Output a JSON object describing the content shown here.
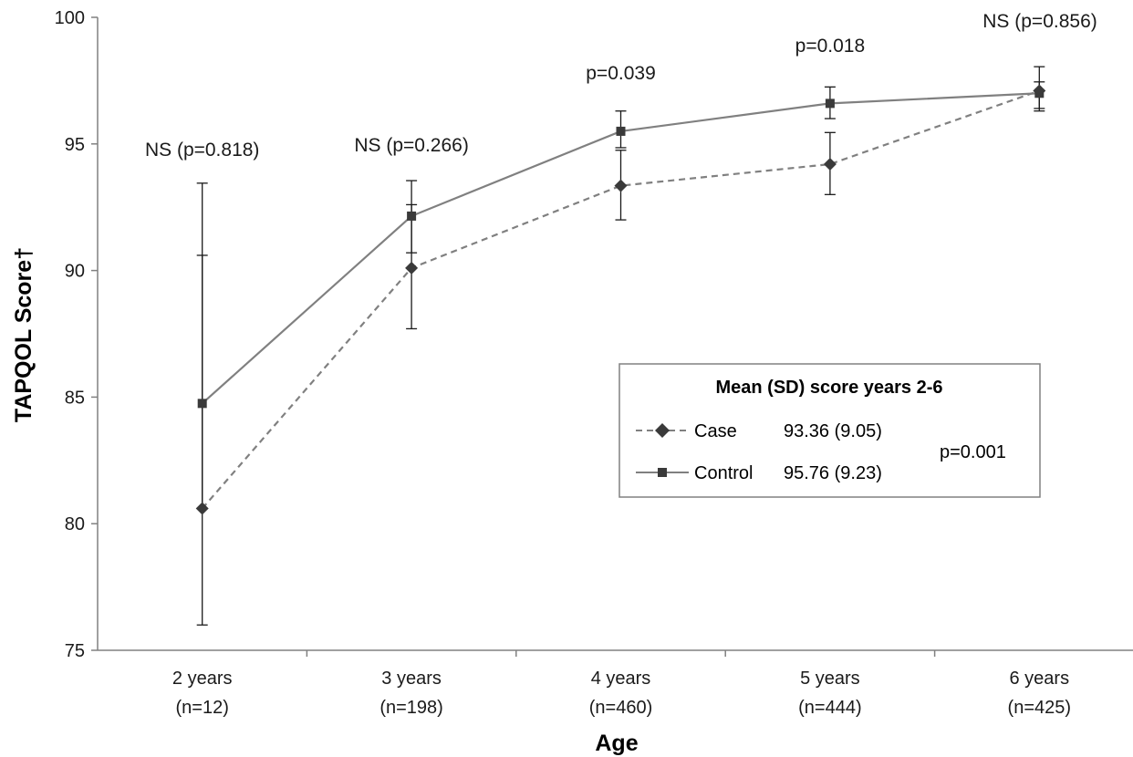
{
  "chart_data": {
    "type": "line",
    "categories": [
      "2 years",
      "3 years",
      "4 years",
      "5 years",
      "6 years"
    ],
    "category_sublabels": [
      "(n=12)",
      "(n=198)",
      "(n=460)",
      "(n=444)",
      "(n=425)"
    ],
    "xlabel": "Age",
    "ylabel": "TAPQOL Score†",
    "ylim": [
      75,
      100
    ],
    "yticks": [
      75,
      80,
      85,
      90,
      95,
      100
    ],
    "grid": false,
    "series": [
      {
        "name": "Case",
        "values": [
          80.6,
          90.1,
          93.35,
          94.2,
          97.1
        ],
        "error_low": [
          76.0,
          87.7,
          92.0,
          93.0,
          96.3
        ],
        "error_high": [
          90.6,
          92.6,
          94.75,
          95.45,
          97.45
        ],
        "color": "#808080",
        "line_style": "dashed",
        "marker": "diamond",
        "legend_stat": "93.36 (9.05)"
      },
      {
        "name": "Control",
        "values": [
          84.75,
          92.15,
          95.5,
          96.6,
          97.0
        ],
        "error_low": [
          80.6,
          90.7,
          94.85,
          96.0,
          96.4
        ],
        "error_high": [
          93.45,
          93.55,
          96.3,
          97.25,
          98.05
        ],
        "color": "#808080",
        "line_style": "solid",
        "marker": "square",
        "legend_stat": "95.76 (9.23)"
      }
    ],
    "annotations": [
      "NS (p=0.818)",
      "NS (p=0.266)",
      "p=0.039",
      "p=0.018",
      "NS (p=0.856)"
    ],
    "legend": {
      "title": "Mean (SD) score years 2-6",
      "p_value": "p=0.001",
      "placement": "center-right"
    }
  }
}
